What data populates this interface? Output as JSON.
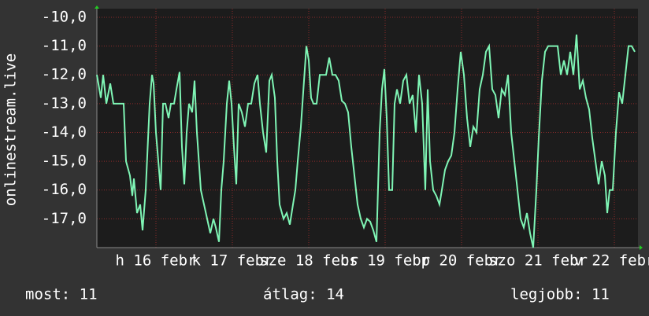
{
  "chart_data": {
    "type": "line",
    "ylabel": "onlinestream.live",
    "color": "#7ff5b5",
    "grid": true,
    "xlim": [
      0,
      687
    ],
    "ylim": [
      -18,
      -9.7
    ],
    "yticks": [
      {
        "value": -10,
        "label": "-10,0"
      },
      {
        "value": -11,
        "label": "-11,0"
      },
      {
        "value": -12,
        "label": "-12,0"
      },
      {
        "value": -13,
        "label": "-13,0"
      },
      {
        "value": -14,
        "label": "-14,0"
      },
      {
        "value": -15,
        "label": "-15,0"
      },
      {
        "value": -16,
        "label": "-16,0"
      },
      {
        "value": -17,
        "label": "-17,0"
      }
    ],
    "xticks": [
      {
        "value": 75,
        "label": "h 16 febr"
      },
      {
        "value": 172,
        "label": "k 17 febr"
      },
      {
        "value": 269,
        "label": "sze 18 febr"
      },
      {
        "value": 366,
        "label": "cs 19 febr"
      },
      {
        "value": 463,
        "label": "p 20 febr"
      },
      {
        "value": 560,
        "label": "szo 21 febr"
      },
      {
        "value": 657,
        "label": "v 22 febr"
      }
    ],
    "x": [
      0,
      5,
      8,
      12,
      17,
      21,
      34,
      37,
      42,
      45,
      47,
      51,
      55,
      58,
      62,
      67,
      70,
      72,
      75,
      78,
      81,
      84,
      87,
      91,
      94,
      98,
      101,
      105,
      108,
      111,
      114,
      117,
      121,
      124,
      127,
      132,
      136,
      140,
      144,
      148,
      151,
      155,
      158,
      161,
      165,
      168,
      171,
      174,
      177,
      180,
      184,
      188,
      192,
      196,
      200,
      204,
      207,
      211,
      215,
      219,
      222,
      226,
      229,
      232,
      237,
      241,
      245,
      249,
      252,
      255,
      259,
      263,
      266,
      269,
      272,
      275,
      279,
      283,
      287,
      291,
      295,
      299,
      303,
      307,
      311,
      315,
      319,
      323,
      327,
      331,
      335,
      339,
      343,
      347,
      351,
      355,
      359,
      362,
      365,
      368,
      371,
      375,
      378,
      381,
      385,
      389,
      393,
      397,
      401,
      405,
      409,
      413,
      417,
      420,
      423,
      427,
      431,
      435,
      438,
      442,
      446,
      450,
      454,
      458,
      462,
      466,
      470,
      474,
      478,
      482,
      486,
      490,
      494,
      498,
      502,
      506,
      510,
      514,
      518,
      522,
      526,
      530,
      534,
      538,
      542,
      546,
      550,
      554,
      558,
      561,
      565,
      569,
      573,
      577,
      581,
      585,
      589,
      593,
      597,
      601,
      605,
      609,
      613,
      617,
      621,
      625,
      629,
      633,
      637,
      641,
      645,
      648,
      651,
      655,
      659,
      663,
      667,
      671,
      675,
      679,
      683
    ],
    "values": [
      -12,
      -12.8,
      -12,
      -13,
      -12.3,
      -13,
      -13,
      -15,
      -15.5,
      -16.2,
      -15.6,
      -16.8,
      -16.5,
      -17.4,
      -16,
      -13,
      -12,
      -12.3,
      -14,
      -15,
      -16,
      -13,
      -13,
      -13.5,
      -13,
      -13,
      -12.5,
      -11.9,
      -14.5,
      -15.8,
      -14,
      -13,
      -13.3,
      -12.2,
      -14,
      -16,
      -16.5,
      -17,
      -17.5,
      -17,
      -17.3,
      -17.8,
      -16,
      -15,
      -13,
      -12.2,
      -13,
      -14.5,
      -15.8,
      -13,
      -13.3,
      -13.8,
      -13,
      -13,
      -12.3,
      -12,
      -13,
      -14,
      -14.7,
      -12.2,
      -12,
      -12.8,
      -15,
      -16.5,
      -17,
      -16.8,
      -17.2,
      -16.5,
      -16,
      -15,
      -13.8,
      -12.2,
      -11,
      -11.5,
      -12.8,
      -13,
      -13,
      -12,
      -12,
      -12,
      -11.4,
      -12,
      -12,
      -12.2,
      -12.9,
      -13,
      -13.3,
      -14.5,
      -15.5,
      -16.5,
      -17,
      -17.3,
      -17,
      -17.1,
      -17.4,
      -17.8,
      -14,
      -12.5,
      -11.8,
      -13.5,
      -16,
      -16,
      -13,
      -12.5,
      -13,
      -12.2,
      -12,
      -13,
      -12.7,
      -14,
      -12,
      -13,
      -16,
      -12.5,
      -15,
      -16,
      -16.2,
      -16.5,
      -16,
      -15.3,
      -15,
      -14.8,
      -14,
      -12.5,
      -11.2,
      -12,
      -13.5,
      -14.5,
      -13.8,
      -14,
      -12.5,
      -12,
      -11.2,
      -11,
      -12.5,
      -12.7,
      -13.5,
      -12.5,
      -12.7,
      -12,
      -14,
      -15,
      -16,
      -17,
      -17.3,
      -16.8,
      -17.5,
      -18,
      -16,
      -14.2,
      -12.2,
      -11.2,
      -11,
      -11,
      -11,
      -11,
      -12,
      -11.5,
      -12,
      -11.2,
      -12,
      -10.6,
      -12.5,
      -12.2,
      -12.8,
      -13.2,
      -14.2,
      -15,
      -15.8,
      -15,
      -15.5,
      -16.8,
      -16,
      -16,
      -14,
      -12.6,
      -13,
      -12,
      -11,
      -11,
      -11.2
    ],
    "footer": [
      "most: 11",
      "átlag: 14",
      "legjobb: 11"
    ]
  }
}
